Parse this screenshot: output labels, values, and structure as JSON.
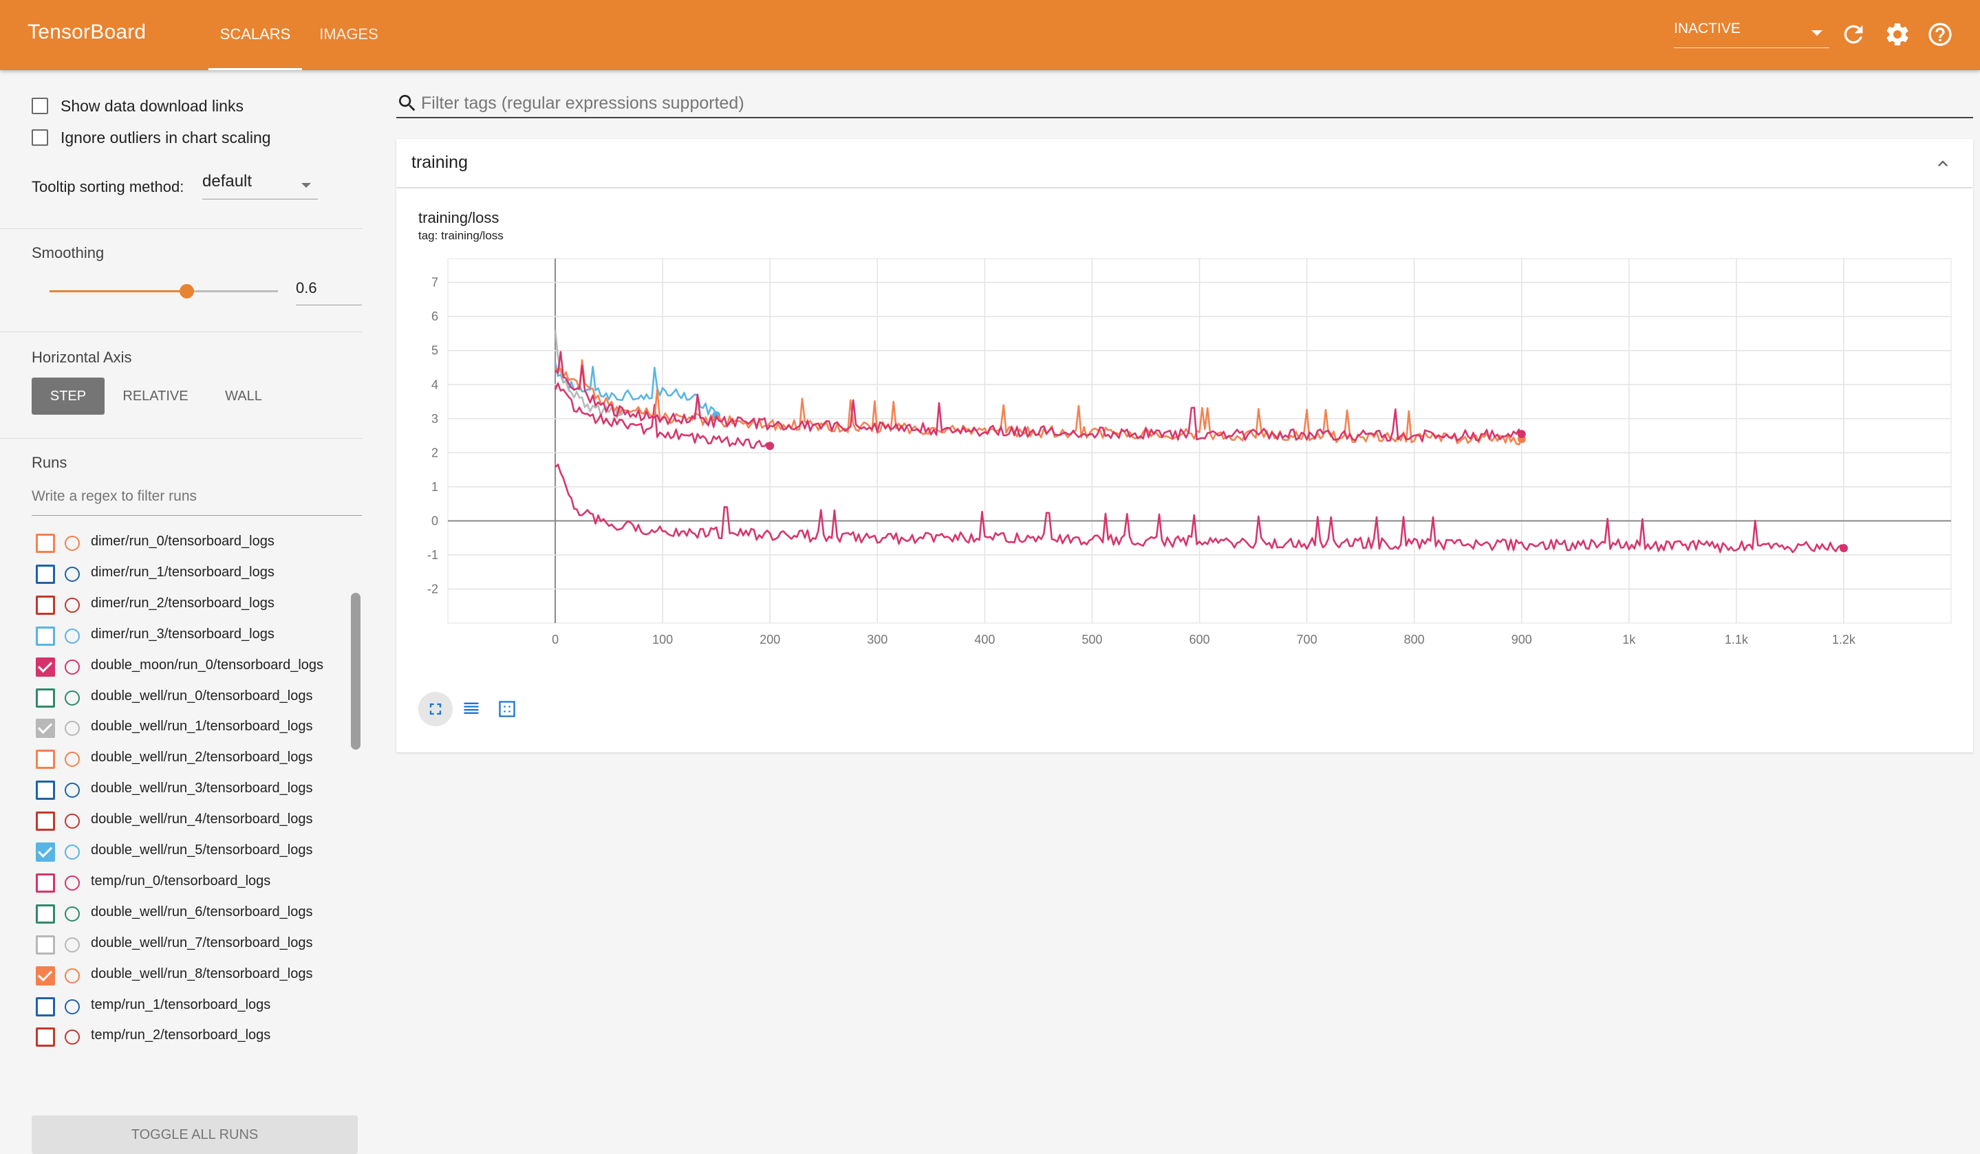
{
  "topbar": {
    "brand": "TensorBoard",
    "tabs": [
      "SCALARS",
      "IMAGES"
    ],
    "inactive_select": "INACTIVE",
    "icons": [
      "refresh-icon",
      "settings-icon",
      "help-icon"
    ],
    "color": "#e8832f"
  },
  "sidebar": {
    "show_download_links": {
      "label": "Show data download links",
      "checked": false
    },
    "ignore_outliers": {
      "label": "Ignore outliers in chart scaling",
      "checked": false
    },
    "tooltip_sorting": {
      "label": "Tooltip sorting method:",
      "value": "default"
    },
    "smoothing": {
      "title": "Smoothing",
      "value": "0.6",
      "fraction": 0.6
    },
    "horizontal_axis": {
      "title": "Horizontal Axis",
      "options": [
        "STEP",
        "RELATIVE",
        "WALL"
      ],
      "selected": "STEP"
    },
    "runs": {
      "title": "Runs",
      "filter_placeholder": "Write a regex to filter runs",
      "items": [
        {
          "label": "dimer/run_0/tensorboard_logs",
          "color": "#f4814d",
          "checked": false
        },
        {
          "label": "dimer/run_1/tensorboard_logs",
          "color": "#1f62a8",
          "checked": false
        },
        {
          "label": "dimer/run_2/tensorboard_logs",
          "color": "#c0392b",
          "checked": false
        },
        {
          "label": "dimer/run_3/tensorboard_logs",
          "color": "#57b4e5",
          "checked": false
        },
        {
          "label": "double_moon/run_0/tensorboard_logs",
          "color": "#d6336c",
          "checked": true
        },
        {
          "label": "double_well/run_0/tensorboard_logs",
          "color": "#2d8a6b",
          "checked": false
        },
        {
          "label": "double_well/run_1/tensorboard_logs",
          "color": "#b8b8b8",
          "checked": true
        },
        {
          "label": "double_well/run_2/tensorboard_logs",
          "color": "#f4814d",
          "checked": false
        },
        {
          "label": "double_well/run_3/tensorboard_logs",
          "color": "#1f62a8",
          "checked": false
        },
        {
          "label": "double_well/run_4/tensorboard_logs",
          "color": "#c0392b",
          "checked": false
        },
        {
          "label": "double_well/run_5/tensorboard_logs",
          "color": "#57b4e5",
          "checked": true
        },
        {
          "label": "temp/run_0/tensorboard_logs",
          "color": "#d6336c",
          "checked": false
        },
        {
          "label": "double_well/run_6/tensorboard_logs",
          "color": "#2d8a6b",
          "checked": false
        },
        {
          "label": "double_well/run_7/tensorboard_logs",
          "color": "#b8b8b8",
          "checked": false
        },
        {
          "label": "double_well/run_8/tensorboard_logs",
          "color": "#f4814d",
          "checked": true
        },
        {
          "label": "temp/run_1/tensorboard_logs",
          "color": "#1f62a8",
          "checked": false
        },
        {
          "label": "temp/run_2/tensorboard_logs",
          "color": "#c0392b",
          "checked": false
        }
      ],
      "toggle_all": "TOGGLE ALL RUNS"
    }
  },
  "main": {
    "filter_placeholder": "Filter tags (regular expressions supported)",
    "category": "training",
    "card": {
      "title": "training/loss",
      "subtitle": "tag: training/loss"
    }
  },
  "chart_data": {
    "type": "line",
    "title": "training/loss",
    "xlabel": "",
    "ylabel": "",
    "xlim": [
      -100,
      1300
    ],
    "ylim": [
      -3,
      7.7
    ],
    "x_ticks": [
      0,
      100,
      200,
      300,
      400,
      500,
      600,
      700,
      800,
      900,
      1000,
      1100,
      1200
    ],
    "x_tick_labels": [
      "0",
      "100",
      "200",
      "300",
      "400",
      "500",
      "600",
      "700",
      "800",
      "900",
      "1k",
      "1.1k",
      "1.2k"
    ],
    "y_ticks": [
      -2,
      -1,
      0,
      1,
      2,
      3,
      4,
      5,
      6,
      7
    ],
    "grid": true,
    "series": [
      {
        "color": "#57b4e5",
        "x": [
          0,
          10,
          25,
          50,
          75,
          100,
          115,
          130,
          150
        ],
        "y": [
          4.5,
          4.0,
          3.8,
          3.7,
          3.7,
          3.75,
          3.7,
          3.6,
          3.1
        ]
      },
      {
        "color": "#b8b8b8",
        "x": [
          0,
          5,
          15,
          30,
          45,
          60
        ],
        "y": [
          5.5,
          4.3,
          3.8,
          3.4,
          3.2,
          3.2
        ]
      },
      {
        "color": "#d6336c",
        "x": [
          0,
          20,
          50,
          100,
          150,
          200
        ],
        "y": [
          4.0,
          3.2,
          2.9,
          2.6,
          2.35,
          2.2
        ]
      },
      {
        "color": "#f4814d",
        "x": [
          0,
          50,
          100,
          200,
          300,
          400,
          500,
          600,
          700,
          800,
          900
        ],
        "y": [
          4.5,
          3.4,
          3.05,
          2.85,
          2.75,
          2.65,
          2.6,
          2.55,
          2.5,
          2.45,
          2.4
        ]
      },
      {
        "color": "#d6336c",
        "x": [
          0,
          50,
          100,
          200,
          300,
          400,
          500,
          600,
          700,
          800,
          900
        ],
        "y": [
          4.3,
          3.3,
          3.0,
          2.85,
          2.75,
          2.65,
          2.6,
          2.55,
          2.55,
          2.5,
          2.55
        ]
      },
      {
        "color": "#d6336c",
        "x": [
          0,
          20,
          50,
          100,
          200,
          300,
          400,
          500,
          600,
          700,
          800,
          900,
          1000,
          1100,
          1200
        ],
        "y": [
          1.7,
          0.3,
          -0.1,
          -0.3,
          -0.4,
          -0.5,
          -0.5,
          -0.55,
          -0.6,
          -0.65,
          -0.65,
          -0.7,
          -0.7,
          -0.75,
          -0.8
        ]
      }
    ]
  }
}
